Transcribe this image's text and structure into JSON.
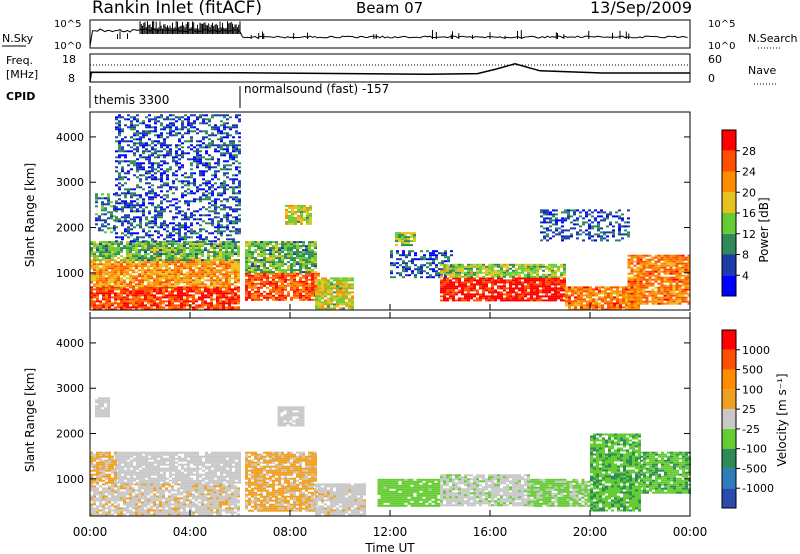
{
  "header": {
    "station": "Rankin Inlet (fitACF)",
    "beam": "Beam 07",
    "date": "13/Sep/2009"
  },
  "top_panels": {
    "nsky_label": "N.Sky",
    "nsky_ticks": [
      "10^5",
      "10^0"
    ],
    "nsearch_label": "N.Search",
    "nsearch_ticks": [
      "10^5",
      "10^0"
    ],
    "freq_label_1": "Freq.",
    "freq_label_2": "[MHz]",
    "freq_ticks": [
      "18",
      "8"
    ],
    "nave_label": "Nave",
    "nave_ticks": [
      "60",
      "0"
    ],
    "cpid_label": "CPID",
    "cpid_segments": [
      {
        "label": "themis 3300",
        "start_hour": 0
      },
      {
        "label": "normalsound (fast) -157",
        "start_hour": 6
      }
    ]
  },
  "power_panel": {
    "ylabel": "Slant Range [km]",
    "yticks": [
      1000,
      2000,
      3000,
      4000
    ],
    "colorbar_label": "Power [dB]",
    "colorbar_ticks": [
      "28",
      "24",
      "20",
      "16",
      "12",
      "8",
      "4"
    ],
    "colors": [
      "#0000ff",
      "#1c3ca8",
      "#2e8b57",
      "#66cc33",
      "#e6c21e",
      "#ff8c00",
      "#ff5000",
      "#ff0000"
    ]
  },
  "velocity_panel": {
    "ylabel": "Slant Range [km]",
    "yticks": [
      1000,
      2000,
      3000,
      4000
    ],
    "colorbar_label": "Velocity [m s⁻¹]",
    "colorbar_ticks": [
      "1000",
      "500",
      "100",
      "25",
      "-25",
      "-100",
      "-500",
      "-1000"
    ],
    "colors": [
      "#2a4ab0",
      "#2e7db8",
      "#2e8b57",
      "#66cc33",
      "#c8c8c8",
      "#f0a020",
      "#ff8c00",
      "#ff5000",
      "#ff0000"
    ]
  },
  "x_axis": {
    "tick_labels": [
      "00:00",
      "04:00",
      "08:00",
      "12:00",
      "16:00",
      "20:00",
      "00:00"
    ],
    "xlabel": "Time UT"
  },
  "chart_data": [
    {
      "type": "heatmap",
      "name_printed": "Power [dB]",
      "x_range_hours": [
        0,
        24
      ],
      "y_range_km": [
        180,
        4550
      ],
      "color_scale": [
        0,
        30
      ],
      "regions": [
        {
          "t": [
            0.0,
            6.0
          ],
          "r": [
            200,
            700
          ],
          "v": 26
        },
        {
          "t": [
            0.0,
            6.0
          ],
          "r": [
            700,
            1300
          ],
          "v": 20
        },
        {
          "t": [
            0.0,
            6.0
          ],
          "r": [
            1300,
            1700
          ],
          "v": 12
        },
        {
          "t": [
            0.2,
            1.0
          ],
          "r": [
            1900,
            2800
          ],
          "v": 8
        },
        {
          "t": [
            1.0,
            6.0
          ],
          "r": [
            1700,
            4500
          ],
          "v": 6
        },
        {
          "t": [
            6.2,
            9.2
          ],
          "r": [
            400,
            1000
          ],
          "v": 24
        },
        {
          "t": [
            6.2,
            9.0
          ],
          "r": [
            1000,
            1700
          ],
          "v": 12
        },
        {
          "t": [
            7.8,
            8.8
          ],
          "r": [
            2100,
            2500
          ],
          "v": 16
        },
        {
          "t": [
            9.0,
            10.5
          ],
          "r": [
            200,
            900
          ],
          "v": 16
        },
        {
          "t": [
            12.0,
            14.5
          ],
          "r": [
            900,
            1500
          ],
          "v": 6
        },
        {
          "t": [
            12.2,
            13.0
          ],
          "r": [
            1600,
            1900
          ],
          "v": 14
        },
        {
          "t": [
            14.0,
            19.0
          ],
          "r": [
            400,
            900
          ],
          "v": 28
        },
        {
          "t": [
            14.0,
            19.0
          ],
          "r": [
            900,
            1200
          ],
          "v": 14
        },
        {
          "t": [
            18.0,
            21.5
          ],
          "r": [
            1700,
            2400
          ],
          "v": 6
        },
        {
          "t": [
            19.0,
            22.0
          ],
          "r": [
            200,
            700
          ],
          "v": 22
        },
        {
          "t": [
            21.5,
            24.0
          ],
          "r": [
            300,
            1400
          ],
          "v": 22
        }
      ]
    },
    {
      "type": "heatmap",
      "name_printed": "Velocity [m s⁻¹]",
      "x_range_hours": [
        0,
        24
      ],
      "y_range_km": [
        180,
        4550
      ],
      "color_scale": [
        -1000,
        1000
      ],
      "regions": [
        {
          "t": [
            0.0,
            6.0
          ],
          "r": [
            200,
            900
          ],
          "v": 60
        },
        {
          "t": [
            1.0,
            6.0
          ],
          "r": [
            900,
            1600
          ],
          "v": 0
        },
        {
          "t": [
            0.0,
            1.0
          ],
          "r": [
            900,
            1600
          ],
          "v": 150
        },
        {
          "t": [
            0.2,
            0.8
          ],
          "r": [
            2400,
            2800
          ],
          "v": 0
        },
        {
          "t": [
            6.2,
            9.0
          ],
          "r": [
            300,
            1600
          ],
          "v": 150
        },
        {
          "t": [
            7.5,
            8.5
          ],
          "r": [
            2200,
            2600
          ],
          "v": 0
        },
        {
          "t": [
            9.0,
            11.0
          ],
          "r": [
            200,
            900
          ],
          "v": 40
        },
        {
          "t": [
            11.5,
            14.0
          ],
          "r": [
            400,
            1000
          ],
          "v": -200
        },
        {
          "t": [
            14.0,
            17.5
          ],
          "r": [
            400,
            1100
          ],
          "v": -60
        },
        {
          "t": [
            17.5,
            20.0
          ],
          "r": [
            400,
            1000
          ],
          "v": -150
        },
        {
          "t": [
            20.0,
            22.0
          ],
          "r": [
            300,
            2000
          ],
          "v": -300
        },
        {
          "t": [
            22.0,
            24.0
          ],
          "r": [
            700,
            1600
          ],
          "v": -300
        }
      ]
    },
    {
      "type": "line",
      "name_printed": "Freq. [MHz]",
      "x_hours": [
        0,
        0.05,
        6.0,
        13.5,
        15.5,
        16.2,
        17.0,
        18.0,
        20.5,
        24
      ],
      "y_mhz": [
        8,
        11.5,
        11.3,
        10.8,
        11.0,
        12.5,
        14.5,
        12.0,
        11.2,
        11.2
      ]
    }
  ]
}
